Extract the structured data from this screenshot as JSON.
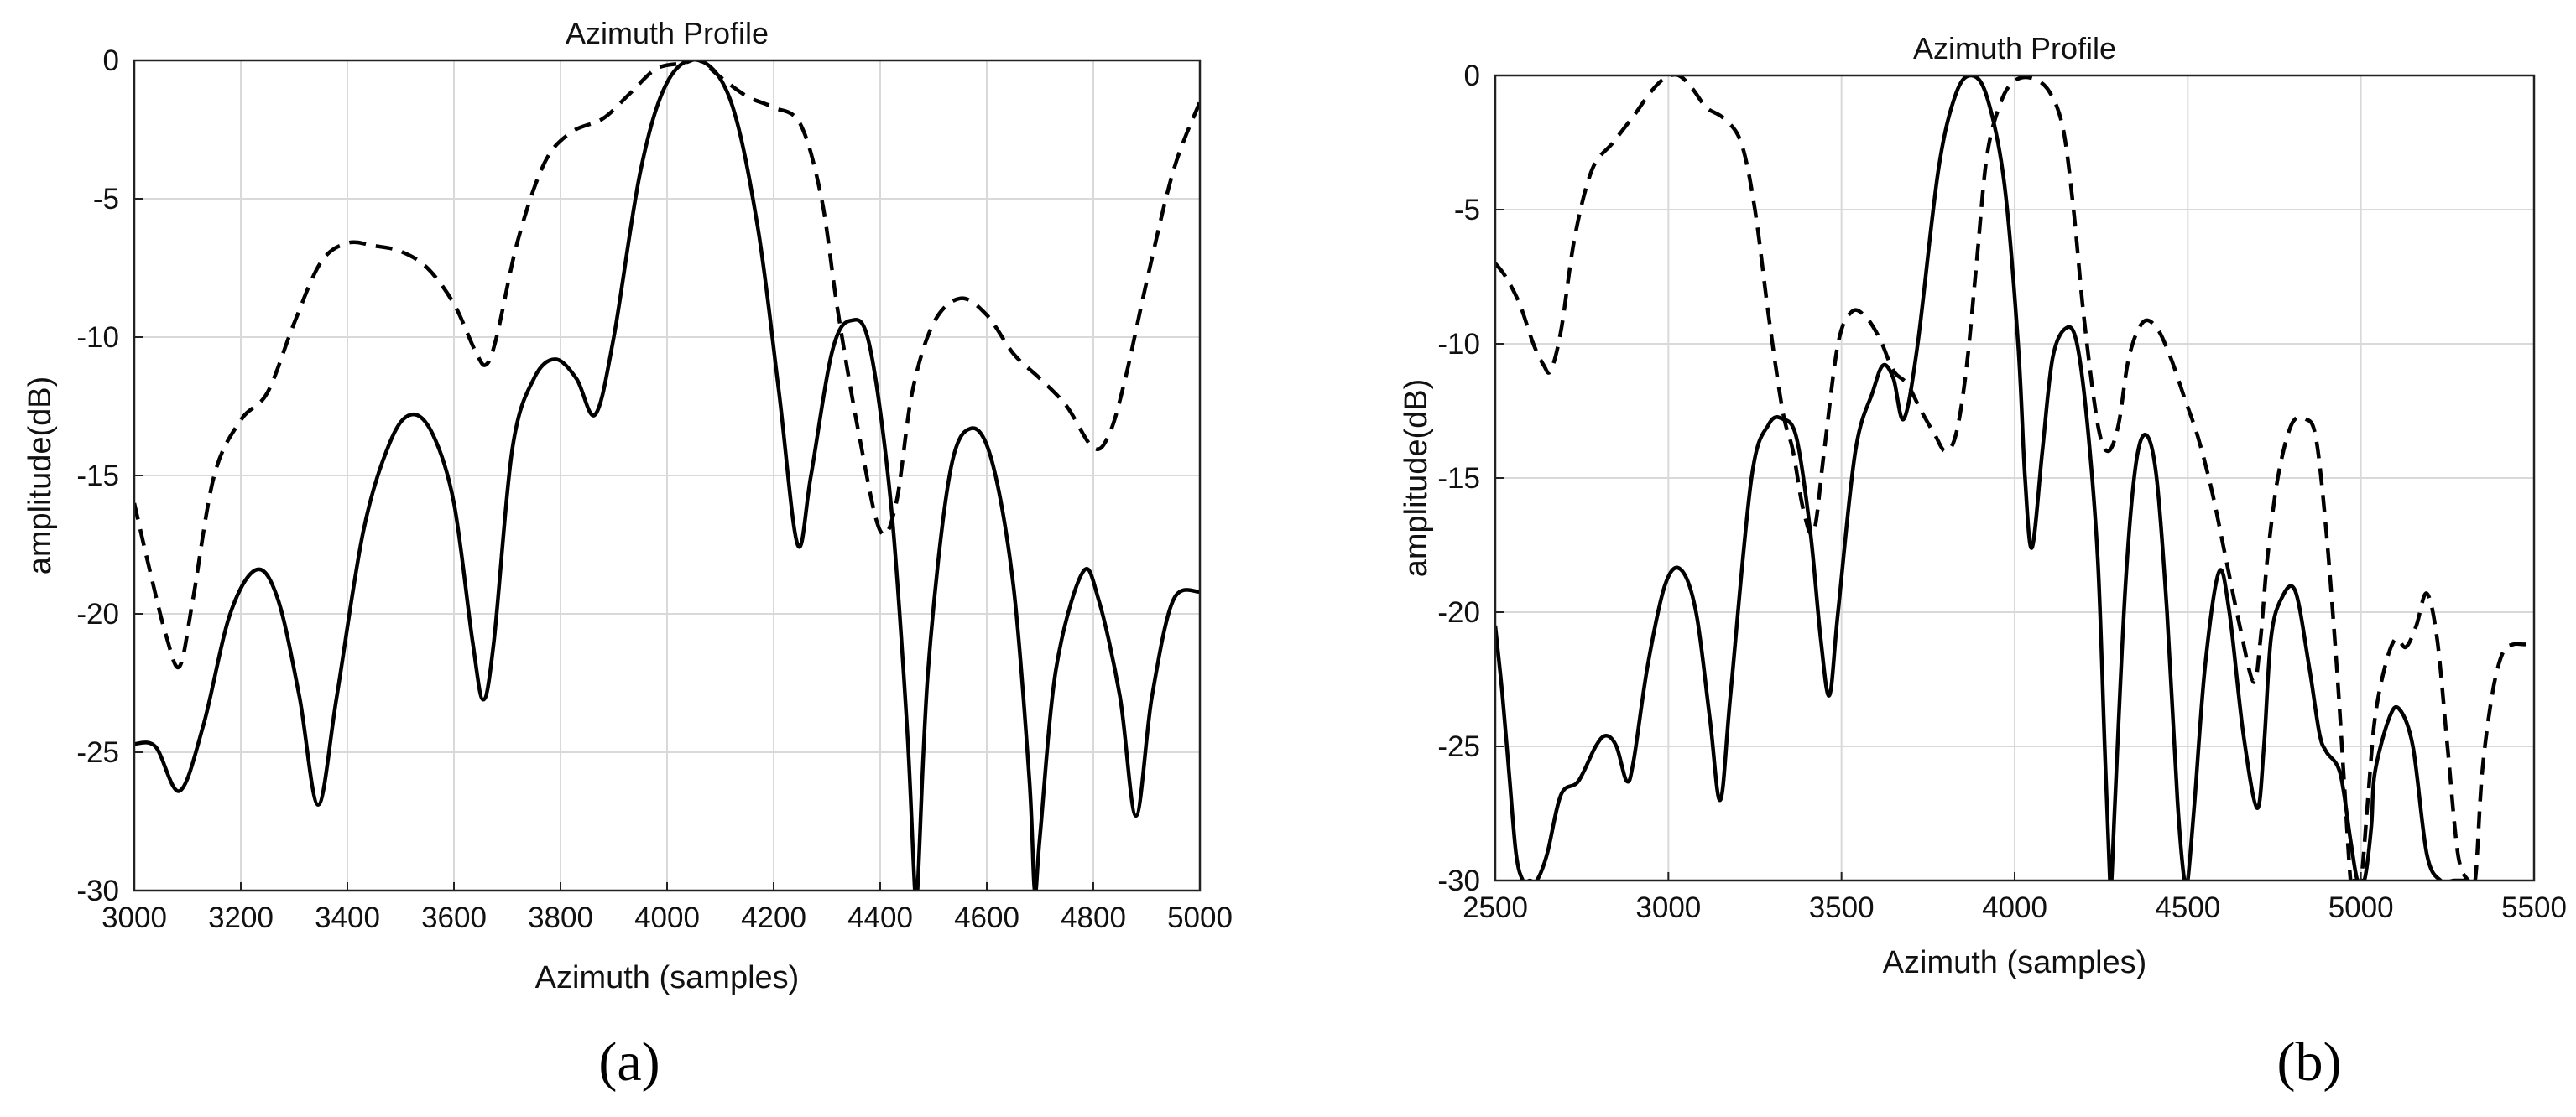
{
  "chart_data": [
    {
      "type": "line",
      "title": "Azimuth Profile",
      "xlabel": "Azimuth (samples)",
      "ylabel": "amplitude(dB)",
      "panel_label": "(a)",
      "xlim": [
        3000,
        5000
      ],
      "ylim": [
        -30,
        0
      ],
      "xticks": [
        "3000",
        "3200",
        "3400",
        "3600",
        "3800",
        "4000",
        "4200",
        "4400",
        "4600",
        "4800",
        "5000"
      ],
      "yticks": [
        "0",
        "-5",
        "-10",
        "-15",
        "-20",
        "-25",
        "-30"
      ],
      "grid": true,
      "series": [
        {
          "name": "solid",
          "style": "solid",
          "x": [
            3000,
            3040,
            3085,
            3130,
            3180,
            3230,
            3270,
            3310,
            3345,
            3380,
            3430,
            3480,
            3520,
            3560,
            3600,
            3635,
            3655,
            3675,
            3710,
            3750,
            3790,
            3830,
            3865,
            3900,
            3950,
            4000,
            4060,
            4120,
            4170,
            4210,
            4245,
            4270,
            4310,
            4345,
            4380,
            4420,
            4450,
            4465,
            4470,
            4490,
            4530,
            4570,
            4610,
            4650,
            4680,
            4690,
            4700,
            4730,
            4780,
            4810,
            4850,
            4880,
            4910,
            4950,
            5000
          ],
          "y": [
            -24.7,
            -24.8,
            -26.4,
            -24,
            -20,
            -18.4,
            -19.5,
            -23,
            -26.9,
            -23,
            -17,
            -13.8,
            -12.8,
            -13.5,
            -16,
            -21,
            -23.1,
            -21,
            -14,
            -11.5,
            -10.8,
            -11.5,
            -12.8,
            -10,
            -4,
            -0.8,
            0,
            -1.5,
            -6,
            -12,
            -17.5,
            -15,
            -10.5,
            -9.4,
            -10.3,
            -16,
            -24,
            -30,
            -30,
            -22,
            -15,
            -13.3,
            -14.5,
            -19,
            -26,
            -30,
            -28,
            -22,
            -18.5,
            -19.5,
            -23,
            -27.3,
            -23,
            -19.5,
            -19.2
          ]
        },
        {
          "name": "dashed",
          "style": "dashed",
          "x": [
            3000,
            3030,
            3060,
            3085,
            3110,
            3150,
            3200,
            3250,
            3300,
            3350,
            3400,
            3450,
            3500,
            3550,
            3600,
            3640,
            3660,
            3680,
            3720,
            3770,
            3820,
            3880,
            3930,
            3980,
            4030,
            4060,
            4100,
            4150,
            4200,
            4250,
            4290,
            4320,
            4360,
            4400,
            4430,
            4460,
            4500,
            4550,
            4600,
            4650,
            4700,
            4750,
            4800,
            4830,
            4860,
            4900,
            4950,
            5000
          ],
          "y": [
            -16,
            -18.5,
            -20.8,
            -21.9,
            -19.5,
            -15,
            -13,
            -12,
            -9.5,
            -7.3,
            -6.6,
            -6.7,
            -6.9,
            -7.5,
            -8.8,
            -10.5,
            -11,
            -10,
            -6.5,
            -3.7,
            -2.6,
            -2.1,
            -1.2,
            -0.3,
            -0.1,
            0,
            -0.6,
            -1.3,
            -1.7,
            -2.3,
            -5,
            -9,
            -13.5,
            -17,
            -16,
            -12,
            -9.5,
            -8.6,
            -9.2,
            -10.6,
            -11.5,
            -12.5,
            -14,
            -13.5,
            -11.5,
            -8,
            -4,
            -1.5
          ]
        }
      ]
    },
    {
      "type": "line",
      "title": "Azimuth Profile",
      "xlabel": "Azimuth (samples)",
      "ylabel": "amplitude(dB)",
      "panel_label": "(b)",
      "xlim": [
        2500,
        5500
      ],
      "ylim": [
        -30,
        0
      ],
      "xticks": [
        "2500",
        "3000",
        "3500",
        "4000",
        "4500",
        "5000",
        "5500"
      ],
      "yticks": [
        "0",
        "-5",
        "-10",
        "-15",
        "-20",
        "-25",
        "-30"
      ],
      "grid": true,
      "series": [
        {
          "name": "solid",
          "style": "solid",
          "x": [
            2500,
            2520,
            2540,
            2560,
            2580,
            2600,
            2620,
            2650,
            2690,
            2740,
            2790,
            2820,
            2850,
            2880,
            2900,
            2940,
            2990,
            3035,
            3080,
            3120,
            3150,
            3180,
            3240,
            3290,
            3330,
            3370,
            3410,
            3440,
            3465,
            3490,
            3540,
            3590,
            3620,
            3650,
            3680,
            3720,
            3780,
            3830,
            3875,
            3920,
            3970,
            4010,
            4030,
            4050,
            4080,
            4110,
            4150,
            4180,
            4210,
            4240,
            4260,
            4275,
            4280,
            4290,
            4320,
            4350,
            4380,
            4410,
            4440,
            4470,
            4490,
            4500,
            4520,
            4550,
            4590,
            4620,
            4660,
            4700,
            4720,
            4740,
            4770,
            4810,
            4850,
            4880,
            4900,
            4940,
            4970,
            4990,
            5010,
            5030,
            5040,
            5080,
            5110,
            5150,
            5190,
            5230,
            5270,
            5310
          ],
          "y": [
            -20.5,
            -23,
            -26,
            -29,
            -30,
            -30,
            -30,
            -29,
            -26.8,
            -26.3,
            -25,
            -24.6,
            -25,
            -26.3,
            -25.5,
            -22,
            -19,
            -18.4,
            -20,
            -24,
            -27,
            -23,
            -15,
            -13,
            -12.8,
            -13.5,
            -17,
            -21,
            -23.1,
            -20,
            -14,
            -11.8,
            -10.8,
            -11.3,
            -12.8,
            -10,
            -3.5,
            -0.7,
            0,
            -0.8,
            -4,
            -10,
            -15,
            -17.6,
            -14,
            -10.5,
            -9.4,
            -10,
            -13,
            -18,
            -25,
            -30,
            -30,
            -27,
            -19,
            -14.5,
            -13.4,
            -15,
            -20,
            -27,
            -30,
            -30,
            -27,
            -22,
            -18.5,
            -20,
            -24.5,
            -27.3,
            -25,
            -21,
            -19.5,
            -19.2,
            -22,
            -24.5,
            -25.2,
            -26,
            -28.5,
            -30,
            -30,
            -28,
            -26,
            -24,
            -23.6,
            -25,
            -29,
            -30,
            -30,
            -30
          ],
          "note": "clipped at -30 beyond x≈4990 with a lobe near x=5190"
        },
        {
          "name": "dashed",
          "style": "dashed",
          "x": [
            2500,
            2530,
            2570,
            2610,
            2640,
            2660,
            2690,
            2730,
            2780,
            2840,
            2900,
            2950,
            2990,
            3030,
            3070,
            3110,
            3160,
            3210,
            3250,
            3290,
            3330,
            3360,
            3390,
            3420,
            3450,
            3490,
            3530,
            3570,
            3610,
            3650,
            3690,
            3730,
            3770,
            3800,
            3830,
            3860,
            3890,
            3920,
            3960,
            4000,
            4050,
            4100,
            4140,
            4170,
            4200,
            4240,
            4270,
            4300,
            4330,
            4370,
            4410,
            4450,
            4490,
            4530,
            4570,
            4610,
            4650,
            4690,
            4710,
            4730,
            4760,
            4800,
            4840,
            4870,
            4900,
            4930,
            4950,
            4970,
            4980,
            5000,
            5020,
            5040,
            5070,
            5100,
            5130,
            5160,
            5190,
            5220,
            5250,
            5280,
            5310,
            5330,
            5350,
            5380,
            5410,
            5440,
            5470,
            5500
          ],
          "y": [
            -7,
            -7.5,
            -8.5,
            -10,
            -10.8,
            -11,
            -9.5,
            -6,
            -3.5,
            -2.5,
            -1.5,
            -0.6,
            -0.1,
            0,
            -0.5,
            -1.2,
            -1.6,
            -2.5,
            -5,
            -9,
            -12.5,
            -14,
            -16.2,
            -17,
            -14,
            -10,
            -8.8,
            -9,
            -9.8,
            -11,
            -11.5,
            -12.5,
            -13.4,
            -14,
            -13.4,
            -11,
            -7,
            -3,
            -1,
            -0.2,
            -0.1,
            -0.6,
            -2,
            -5,
            -9,
            -13,
            -14,
            -13,
            -10.5,
            -9.2,
            -9.4,
            -10.5,
            -12,
            -13.5,
            -15.5,
            -18,
            -20.5,
            -22.6,
            -21,
            -18,
            -15,
            -13,
            -12.8,
            -13.5,
            -17,
            -22,
            -26,
            -30,
            -30,
            -30,
            -27,
            -24,
            -22,
            -21,
            -21.3,
            -20.5,
            -19.3,
            -21,
            -25,
            -29,
            -30,
            -30,
            -26,
            -23,
            -21.5,
            -21.2,
            -21.2,
            -21.2
          ],
          "note": "clipped at -30 near x≈4980 and x≈5330"
        }
      ]
    }
  ]
}
